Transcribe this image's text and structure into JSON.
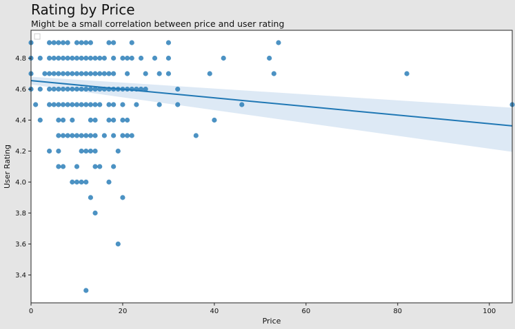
{
  "chart_data": {
    "type": "scatter",
    "title": "Rating by Price",
    "subtitle": "Might be a small correlation between price and user rating",
    "xlabel": "Price",
    "ylabel": "User Rating",
    "xlim": [
      0,
      105
    ],
    "ylim": [
      3.22,
      4.98
    ],
    "xticks": [
      0,
      20,
      40,
      60,
      80,
      100
    ],
    "yticks": [
      3.4,
      3.6,
      3.8,
      4.0,
      4.2,
      4.4,
      4.6,
      4.8
    ],
    "grid": false,
    "legend": "empty, top-left",
    "colors": {
      "points": "#1f77b4",
      "line": "#1f77b4",
      "band": "#c6dbef",
      "plot_bg": "#ffffff",
      "figure_bg": "#e5e5e5"
    },
    "regression": {
      "x": [
        0,
        105
      ],
      "y": [
        4.655,
        4.363
      ],
      "ci_lower": [
        4.63,
        4.195
      ],
      "ci_upper": [
        4.68,
        4.48
      ]
    },
    "points": [
      [
        0,
        4.9
      ],
      [
        0,
        4.8
      ],
      [
        0,
        4.7
      ],
      [
        0,
        4.6
      ],
      [
        1,
        4.5
      ],
      [
        2,
        4.8
      ],
      [
        2,
        4.6
      ],
      [
        2,
        4.4
      ],
      [
        3,
        4.7
      ],
      [
        4,
        4.9
      ],
      [
        4,
        4.8
      ],
      [
        4,
        4.7
      ],
      [
        4,
        4.6
      ],
      [
        4,
        4.5
      ],
      [
        4,
        4.2
      ],
      [
        5,
        4.9
      ],
      [
        5,
        4.8
      ],
      [
        5,
        4.7
      ],
      [
        5,
        4.6
      ],
      [
        5,
        4.5
      ],
      [
        6,
        4.9
      ],
      [
        6,
        4.8
      ],
      [
        6,
        4.7
      ],
      [
        6,
        4.6
      ],
      [
        6,
        4.5
      ],
      [
        6,
        4.4
      ],
      [
        6,
        4.3
      ],
      [
        6,
        4.2
      ],
      [
        6,
        4.1
      ],
      [
        7,
        4.9
      ],
      [
        7,
        4.8
      ],
      [
        7,
        4.7
      ],
      [
        7,
        4.6
      ],
      [
        7,
        4.5
      ],
      [
        7,
        4.4
      ],
      [
        7,
        4.3
      ],
      [
        7,
        4.1
      ],
      [
        8,
        4.9
      ],
      [
        8,
        4.8
      ],
      [
        8,
        4.7
      ],
      [
        8,
        4.6
      ],
      [
        8,
        4.5
      ],
      [
        8,
        4.3
      ],
      [
        9,
        4.8
      ],
      [
        9,
        4.7
      ],
      [
        9,
        4.6
      ],
      [
        9,
        4.5
      ],
      [
        9,
        4.4
      ],
      [
        9,
        4.3
      ],
      [
        9,
        4.0
      ],
      [
        10,
        4.9
      ],
      [
        10,
        4.8
      ],
      [
        10,
        4.7
      ],
      [
        10,
        4.6
      ],
      [
        10,
        4.5
      ],
      [
        10,
        4.3
      ],
      [
        10,
        4.1
      ],
      [
        10,
        4.0
      ],
      [
        11,
        4.9
      ],
      [
        11,
        4.8
      ],
      [
        11,
        4.7
      ],
      [
        11,
        4.6
      ],
      [
        11,
        4.5
      ],
      [
        11,
        4.3
      ],
      [
        11,
        4.2
      ],
      [
        11,
        4.0
      ],
      [
        12,
        4.9
      ],
      [
        12,
        4.8
      ],
      [
        12,
        4.7
      ],
      [
        12,
        4.6
      ],
      [
        12,
        4.5
      ],
      [
        12,
        4.3
      ],
      [
        12,
        4.2
      ],
      [
        12,
        4.0
      ],
      [
        12,
        3.3
      ],
      [
        13,
        4.9
      ],
      [
        13,
        4.8
      ],
      [
        13,
        4.7
      ],
      [
        13,
        4.6
      ],
      [
        13,
        4.5
      ],
      [
        13,
        4.4
      ],
      [
        13,
        4.3
      ],
      [
        13,
        4.2
      ],
      [
        13,
        3.9
      ],
      [
        14,
        4.8
      ],
      [
        14,
        4.7
      ],
      [
        14,
        4.6
      ],
      [
        14,
        4.5
      ],
      [
        14,
        4.4
      ],
      [
        14,
        4.3
      ],
      [
        14,
        4.2
      ],
      [
        14,
        4.1
      ],
      [
        14,
        3.8
      ],
      [
        15,
        4.8
      ],
      [
        15,
        4.7
      ],
      [
        15,
        4.6
      ],
      [
        15,
        4.5
      ],
      [
        15,
        4.1
      ],
      [
        16,
        4.8
      ],
      [
        16,
        4.7
      ],
      [
        16,
        4.6
      ],
      [
        16,
        4.3
      ],
      [
        17,
        4.9
      ],
      [
        17,
        4.7
      ],
      [
        17,
        4.6
      ],
      [
        17,
        4.5
      ],
      [
        17,
        4.4
      ],
      [
        17,
        4.0
      ],
      [
        18,
        4.9
      ],
      [
        18,
        4.8
      ],
      [
        18,
        4.7
      ],
      [
        18,
        4.6
      ],
      [
        18,
        4.5
      ],
      [
        18,
        4.4
      ],
      [
        18,
        4.3
      ],
      [
        18,
        4.1
      ],
      [
        19,
        4.6
      ],
      [
        19,
        4.2
      ],
      [
        19,
        3.6
      ],
      [
        20,
        4.8
      ],
      [
        20,
        4.6
      ],
      [
        20,
        4.5
      ],
      [
        20,
        4.4
      ],
      [
        20,
        4.3
      ],
      [
        20,
        3.9
      ],
      [
        21,
        4.8
      ],
      [
        21,
        4.7
      ],
      [
        21,
        4.6
      ],
      [
        21,
        4.4
      ],
      [
        21,
        4.3
      ],
      [
        22,
        4.9
      ],
      [
        22,
        4.8
      ],
      [
        22,
        4.6
      ],
      [
        22,
        4.3
      ],
      [
        23,
        4.6
      ],
      [
        23,
        4.5
      ],
      [
        24,
        4.8
      ],
      [
        24,
        4.6
      ],
      [
        25,
        4.7
      ],
      [
        25,
        4.6
      ],
      [
        27,
        4.8
      ],
      [
        28,
        4.7
      ],
      [
        28,
        4.5
      ],
      [
        30,
        4.9
      ],
      [
        30,
        4.8
      ],
      [
        30,
        4.7
      ],
      [
        32,
        4.6
      ],
      [
        32,
        4.5
      ],
      [
        36,
        4.3
      ],
      [
        39,
        4.7
      ],
      [
        40,
        4.4
      ],
      [
        42,
        4.8
      ],
      [
        46,
        4.5
      ],
      [
        52,
        4.8
      ],
      [
        53,
        4.7
      ],
      [
        54,
        4.9
      ],
      [
        82,
        4.7
      ],
      [
        105,
        4.5
      ]
    ]
  }
}
